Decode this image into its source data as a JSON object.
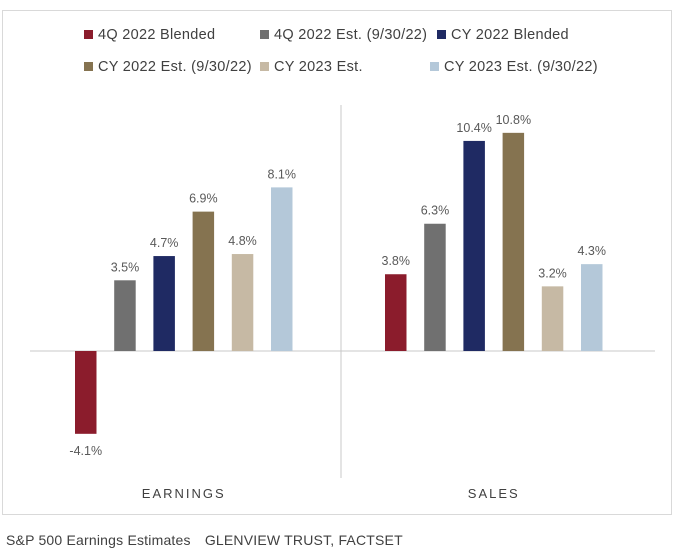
{
  "chart_data": {
    "type": "bar",
    "categories": [
      "EARNINGS",
      "SALES"
    ],
    "series": [
      {
        "name": "4Q 2022 Blended",
        "color": "#8b1c2c",
        "values": [
          -4.1,
          3.8
        ],
        "labels": [
          "-4.1%",
          "3.8%"
        ]
      },
      {
        "name": "4Q 2022 Est. (9/30/22)",
        "color": "#707070",
        "values": [
          3.5,
          6.3
        ],
        "labels": [
          "3.5%",
          "6.3%"
        ]
      },
      {
        "name": "CY 2022 Blended",
        "color": "#1f2a63",
        "values": [
          4.7,
          10.4
        ],
        "labels": [
          "4.7%",
          "10.4%"
        ]
      },
      {
        "name": "CY 2022 Est. (9/30/22)",
        "color": "#857350",
        "values": [
          6.9,
          10.8
        ],
        "labels": [
          "6.9%",
          "10.8%"
        ]
      },
      {
        "name": "CY 2023 Est.",
        "color": "#c6b9a4",
        "values": [
          4.8,
          3.2
        ],
        "labels": [
          "4.8%",
          "3.2%"
        ]
      },
      {
        "name": "CY 2023 Est. (9/30/22)",
        "color": "#b4c8d9",
        "values": [
          8.1,
          4.3
        ],
        "labels": [
          "8.1%",
          "4.3%"
        ]
      }
    ],
    "grid": false,
    "legend": "top"
  },
  "caption": {
    "title": "S&P 500 Earnings Estimates",
    "source": "GLENVIEW TRUST, FACTSET"
  }
}
